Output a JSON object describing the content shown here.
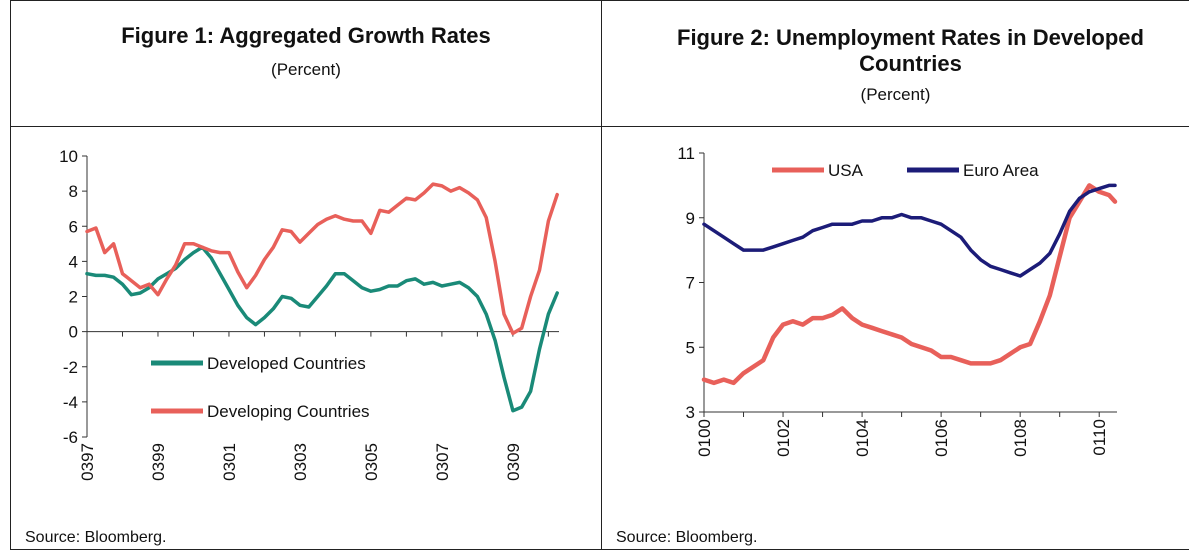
{
  "figure1": {
    "title": "Figure 1: Aggregated Growth Rates",
    "subtitle": "(Percent)",
    "source": "Source: Bloomberg."
  },
  "figure2": {
    "title": "Figure 2: Unemployment Rates in Developed Countries",
    "subtitle": "(Percent)",
    "source": "Source: Bloomberg."
  },
  "chart_data": [
    {
      "type": "line",
      "title": "Figure 1: Aggregated Growth Rates",
      "ylim": [
        -6,
        10
      ],
      "y_ticks": [
        "10",
        "8",
        "6",
        "4",
        "2",
        "0",
        "-2",
        "-4",
        "-6"
      ],
      "x_tick_labels": [
        "0397",
        "0399",
        "0301",
        "0303",
        "0305",
        "0307",
        "0309"
      ],
      "legend": "inside-lower-left",
      "grid": false,
      "series": [
        {
          "name": "Developed Countries",
          "color": "#1a8a78",
          "x": [
            1997.0,
            1997.25,
            1997.5,
            1997.75,
            1998.0,
            1998.25,
            1998.5,
            1998.75,
            1999.0,
            1999.25,
            1999.5,
            1999.75,
            2000.0,
            2000.25,
            2000.5,
            2000.75,
            2001.0,
            2001.25,
            2001.5,
            2001.75,
            2002.0,
            2002.25,
            2002.5,
            2002.75,
            2003.0,
            2003.25,
            2003.5,
            2003.75,
            2004.0,
            2004.25,
            2004.5,
            2004.75,
            2005.0,
            2005.25,
            2005.5,
            2005.75,
            2006.0,
            2006.25,
            2006.5,
            2006.75,
            2007.0,
            2007.25,
            2007.5,
            2007.75,
            2008.0,
            2008.25,
            2008.5,
            2008.75,
            2009.0,
            2009.25,
            2009.5,
            2009.75,
            2010.0,
            2010.25
          ],
          "values": [
            3.3,
            3.2,
            3.2,
            3.1,
            2.7,
            2.1,
            2.2,
            2.5,
            3.0,
            3.3,
            3.6,
            4.1,
            4.5,
            4.8,
            4.2,
            3.3,
            2.4,
            1.5,
            0.8,
            0.4,
            0.8,
            1.3,
            2.0,
            1.9,
            1.5,
            1.4,
            2.0,
            2.6,
            3.3,
            3.3,
            2.9,
            2.5,
            2.3,
            2.4,
            2.6,
            2.6,
            2.9,
            3.0,
            2.7,
            2.8,
            2.6,
            2.7,
            2.8,
            2.5,
            2.0,
            1.0,
            -0.5,
            -2.6,
            -4.5,
            -4.3,
            -3.4,
            -1.0,
            1.0,
            2.2
          ]
        },
        {
          "name": "Developing Countries",
          "color": "#e8605a",
          "x": [
            1997.0,
            1997.25,
            1997.5,
            1997.75,
            1998.0,
            1998.25,
            1998.5,
            1998.75,
            1999.0,
            1999.25,
            1999.5,
            1999.75,
            2000.0,
            2000.25,
            2000.5,
            2000.75,
            2001.0,
            2001.25,
            2001.5,
            2001.75,
            2002.0,
            2002.25,
            2002.5,
            2002.75,
            2003.0,
            2003.25,
            2003.5,
            2003.75,
            2004.0,
            2004.25,
            2004.5,
            2004.75,
            2005.0,
            2005.25,
            2005.5,
            2005.75,
            2006.0,
            2006.25,
            2006.5,
            2006.75,
            2007.0,
            2007.25,
            2007.5,
            2007.75,
            2008.0,
            2008.25,
            2008.5,
            2008.75,
            2009.0,
            2009.25,
            2009.5,
            2009.75,
            2010.0,
            2010.25
          ],
          "values": [
            5.7,
            5.9,
            4.5,
            5.0,
            3.3,
            2.9,
            2.5,
            2.7,
            2.1,
            3.0,
            3.8,
            5.0,
            5.0,
            4.8,
            4.6,
            4.5,
            4.5,
            3.4,
            2.5,
            3.2,
            4.1,
            4.8,
            5.8,
            5.7,
            5.1,
            5.6,
            6.1,
            6.4,
            6.6,
            6.4,
            6.3,
            6.3,
            5.6,
            6.9,
            6.8,
            7.2,
            7.6,
            7.5,
            7.9,
            8.4,
            8.3,
            8.0,
            8.2,
            7.9,
            7.5,
            6.5,
            4.0,
            1.0,
            -0.1,
            0.2,
            2.0,
            3.5,
            6.3,
            7.8
          ]
        }
      ]
    },
    {
      "type": "line",
      "title": "Figure 2: Unemployment Rates in Developed Countries",
      "ylim": [
        3,
        11
      ],
      "y_ticks": [
        "11",
        "9",
        "7",
        "5",
        "3"
      ],
      "x_tick_labels": [
        "0100",
        "0102",
        "0104",
        "0106",
        "0108",
        "0110"
      ],
      "legend": "top",
      "grid": false,
      "series": [
        {
          "name": "USA",
          "color": "#e8605a",
          "x": [
            2000.0,
            2000.25,
            2000.5,
            2000.75,
            2001.0,
            2001.25,
            2001.5,
            2001.75,
            2002.0,
            2002.25,
            2002.5,
            2002.75,
            2003.0,
            2003.25,
            2003.5,
            2003.75,
            2004.0,
            2004.25,
            2004.5,
            2004.75,
            2005.0,
            2005.25,
            2005.5,
            2005.75,
            2006.0,
            2006.25,
            2006.5,
            2006.75,
            2007.0,
            2007.25,
            2007.5,
            2007.75,
            2008.0,
            2008.25,
            2008.5,
            2008.75,
            2009.0,
            2009.25,
            2009.5,
            2009.75,
            2010.0,
            2010.25,
            2010.4
          ],
          "values": [
            4.0,
            3.9,
            4.0,
            3.9,
            4.2,
            4.4,
            4.6,
            5.3,
            5.7,
            5.8,
            5.7,
            5.9,
            5.9,
            6.0,
            6.2,
            5.9,
            5.7,
            5.6,
            5.5,
            5.4,
            5.3,
            5.1,
            5.0,
            4.9,
            4.7,
            4.7,
            4.6,
            4.5,
            4.5,
            4.5,
            4.6,
            4.8,
            5.0,
            5.1,
            5.8,
            6.6,
            7.8,
            9.0,
            9.5,
            10.0,
            9.8,
            9.7,
            9.5
          ]
        },
        {
          "name": "Euro Area",
          "color": "#1c1c78",
          "x": [
            2000.0,
            2000.25,
            2000.5,
            2000.75,
            2001.0,
            2001.25,
            2001.5,
            2001.75,
            2002.0,
            2002.25,
            2002.5,
            2002.75,
            2003.0,
            2003.25,
            2003.5,
            2003.75,
            2004.0,
            2004.25,
            2004.5,
            2004.75,
            2005.0,
            2005.25,
            2005.5,
            2005.75,
            2006.0,
            2006.25,
            2006.5,
            2006.75,
            2007.0,
            2007.25,
            2007.5,
            2007.75,
            2008.0,
            2008.25,
            2008.5,
            2008.75,
            2009.0,
            2009.25,
            2009.5,
            2009.75,
            2010.0,
            2010.25,
            2010.4
          ],
          "values": [
            8.8,
            8.6,
            8.4,
            8.2,
            8.0,
            8.0,
            8.0,
            8.1,
            8.2,
            8.3,
            8.4,
            8.6,
            8.7,
            8.8,
            8.8,
            8.8,
            8.9,
            8.9,
            9.0,
            9.0,
            9.1,
            9.0,
            9.0,
            8.9,
            8.8,
            8.6,
            8.4,
            8.0,
            7.7,
            7.5,
            7.4,
            7.3,
            7.2,
            7.4,
            7.6,
            7.9,
            8.5,
            9.2,
            9.6,
            9.8,
            9.9,
            10.0,
            10.0
          ]
        }
      ]
    }
  ]
}
